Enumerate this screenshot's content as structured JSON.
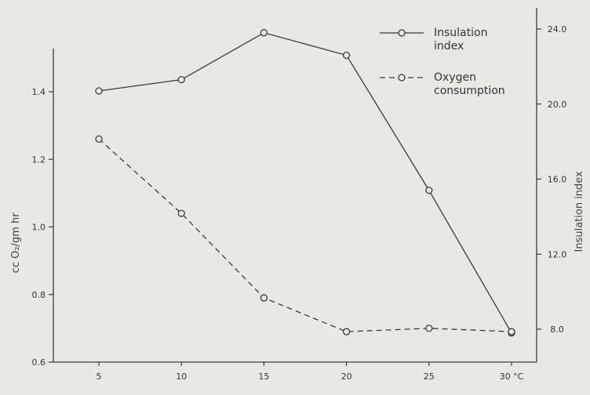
{
  "chart_data": {
    "type": "line",
    "x": [
      5,
      10,
      15,
      20,
      25,
      30
    ],
    "x_tick_labels": [
      "5",
      "10",
      "15",
      "20",
      "25",
      "30 °C"
    ],
    "xlim": [
      5,
      30
    ],
    "y_left_label": "cc O₂/gm hr",
    "y_left_ticks": [
      "0.6",
      "0.8",
      "1.0",
      "1.2",
      "1.4"
    ],
    "y_left_lim": [
      0.6,
      1.5
    ],
    "y_right_label": "Insulation index",
    "y_right_ticks": [
      "8.0",
      "12.0",
      "16.0",
      "20.0",
      "24.0"
    ],
    "y_right_lim": [
      6.0,
      24.0
    ],
    "grid": false,
    "legend_position": "top-right",
    "series": [
      {
        "name": "Insulation index",
        "axis": "right",
        "style": "solid",
        "marker": "open-circle",
        "values": [
          20.7,
          21.3,
          23.8,
          22.6,
          15.4,
          7.8
        ]
      },
      {
        "name": "Oxygen consumption",
        "axis": "left",
        "style": "dashed",
        "marker": "open-circle",
        "values": [
          1.26,
          1.04,
          0.79,
          0.69,
          0.7,
          0.69
        ]
      }
    ],
    "legend": [
      {
        "lines": [
          "Insulation",
          "index"
        ],
        "style": "solid"
      },
      {
        "lines": [
          "Oxygen",
          "consumption"
        ],
        "style": "dashed"
      }
    ]
  }
}
